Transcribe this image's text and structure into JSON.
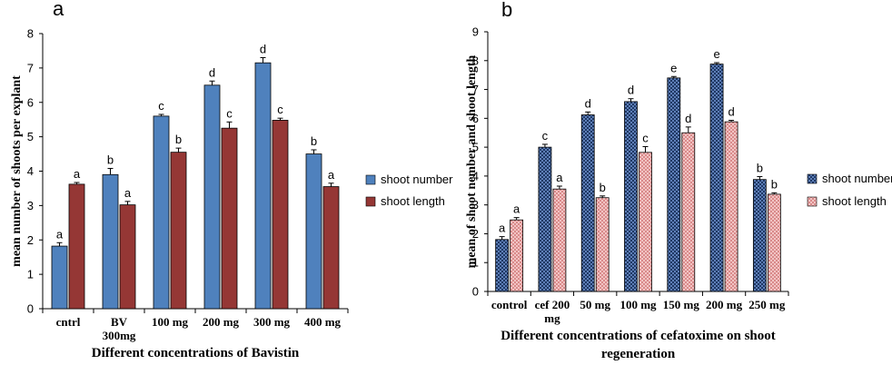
{
  "chart_data": [
    {
      "type": "bar",
      "panel_label": "a",
      "xlabel": "Different concentrations of Bavistin",
      "ylabel": "mean number of shoots per explant",
      "ylim": [
        0,
        8
      ],
      "yticks": [
        "0",
        "1",
        "2",
        "3",
        "4",
        "5",
        "6",
        "7",
        "8"
      ],
      "categories": [
        "cntrl",
        "BV 300mg",
        "100 mg",
        "200 mg",
        "300 mg",
        "400 mg"
      ],
      "grid": false,
      "legend_position": "right",
      "series": [
        {
          "name": "shoot number",
          "color": "#4F81BD",
          "values": [
            1.82,
            3.9,
            5.6,
            6.5,
            7.15,
            4.5
          ],
          "errors": [
            0.1,
            0.18,
            0.05,
            0.12,
            0.15,
            0.12
          ],
          "letters": [
            "a",
            "b",
            "c",
            "d",
            "d",
            "b"
          ]
        },
        {
          "name": "shoot length",
          "color": "#953735",
          "values": [
            3.62,
            3.02,
            4.55,
            5.25,
            5.48,
            3.55
          ],
          "errors": [
            0.05,
            0.1,
            0.12,
            0.18,
            0.06,
            0.1
          ],
          "letters": [
            "a",
            "a",
            "b",
            "c",
            "c",
            "a"
          ]
        }
      ]
    },
    {
      "type": "bar",
      "panel_label": "b",
      "xlabel": "Different concentrations of cefatoxime on shoot regeneration",
      "ylabel": "mean of shoot nember and shoot length",
      "ylim": [
        0,
        9
      ],
      "yticks": [
        "0",
        "1",
        "2",
        "3",
        "4",
        "5",
        "6",
        "7",
        "8",
        "9"
      ],
      "categories": [
        "control",
        "cef 200 mg",
        "50 mg",
        "100 mg",
        "150 mg",
        "200 mg",
        "250 mg"
      ],
      "grid": false,
      "legend_position": "right",
      "series": [
        {
          "name": "shoot number",
          "color": "#1F3864",
          "values": [
            1.8,
            5.0,
            6.12,
            6.58,
            7.4,
            7.88,
            3.88
          ],
          "errors": [
            0.1,
            0.1,
            0.1,
            0.1,
            0.05,
            0.05,
            0.1
          ],
          "letters": [
            "a",
            "c",
            "d",
            "d",
            "e",
            "e",
            "b"
          ]
        },
        {
          "name": "shoot length",
          "color": "#E6B0B0",
          "values": [
            2.48,
            3.55,
            3.25,
            4.82,
            5.5,
            5.88,
            3.37
          ],
          "errors": [
            0.08,
            0.1,
            0.06,
            0.2,
            0.2,
            0.05,
            0.05
          ],
          "letters": [
            "a",
            "a",
            "b",
            "c",
            "d",
            "d",
            "b"
          ]
        }
      ]
    }
  ]
}
